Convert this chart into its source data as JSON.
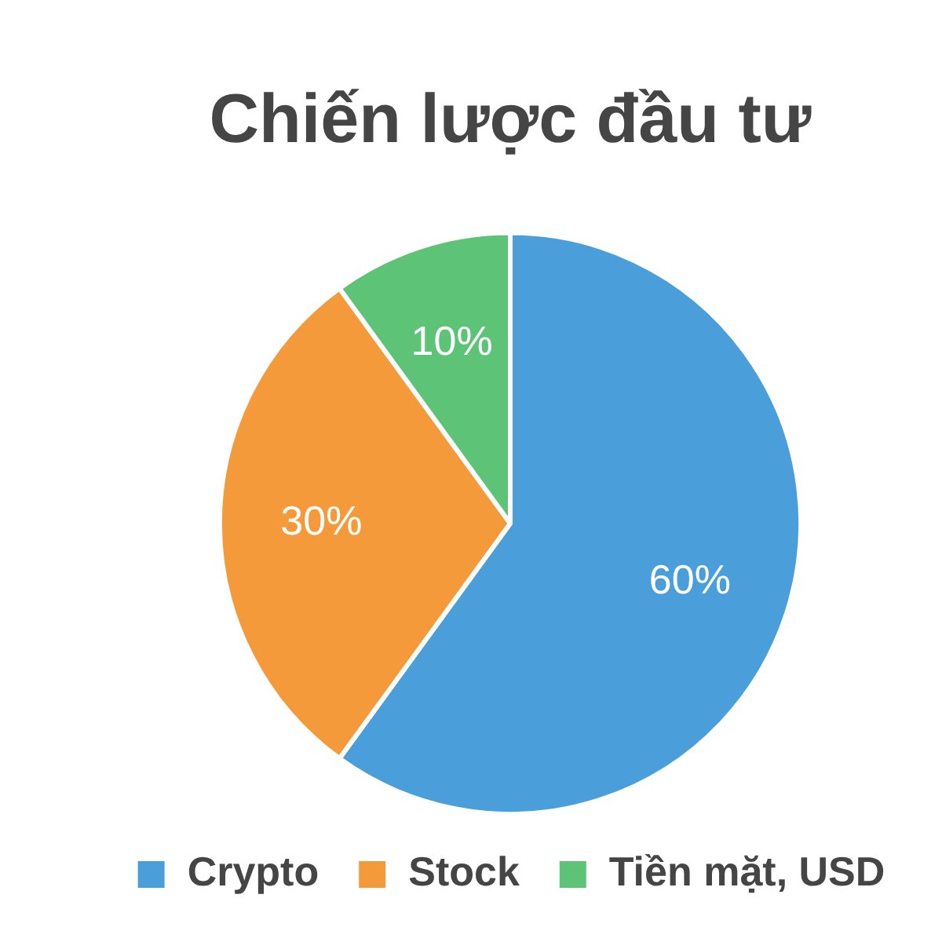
{
  "chart_data": {
    "type": "pie",
    "title": "Chiến lược đầu tư",
    "categories": [
      "Crypto",
      "Stock",
      "Tiền mặt, USD"
    ],
    "values": [
      60,
      30,
      10
    ],
    "colors": [
      "#4a9fdb",
      "#f49a3b",
      "#5dc477"
    ],
    "value_labels": [
      "60%",
      "30%",
      "10%"
    ],
    "legend": "bottom"
  }
}
